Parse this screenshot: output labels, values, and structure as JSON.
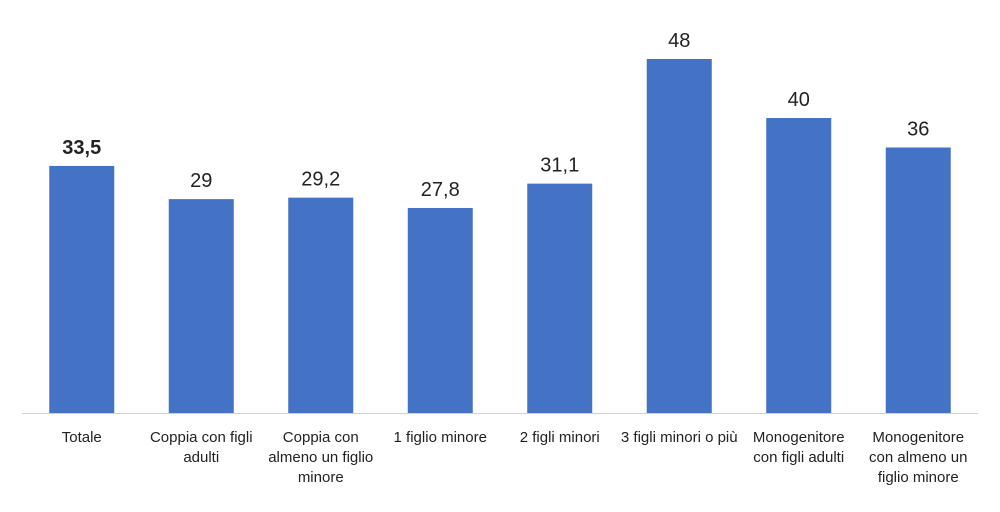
{
  "chart_data": {
    "type": "bar",
    "categories": [
      "Totale",
      "Coppia con figli adulti",
      "Coppia con almeno un figlio minore",
      "1 figlio minore",
      "2 figli minori",
      "3 figli minori o più",
      "Monogenitore con figli adulti",
      "Monogenitore con almeno un figlio minore"
    ],
    "values": [
      33.5,
      29,
      29.2,
      27.8,
      31.1,
      48,
      40,
      36
    ],
    "value_labels": [
      "33,5",
      "29",
      "29,2",
      "27,8",
      "31,1",
      "48",
      "40",
      "36"
    ],
    "color": "#4472c4",
    "ylim": [
      0,
      48
    ]
  }
}
